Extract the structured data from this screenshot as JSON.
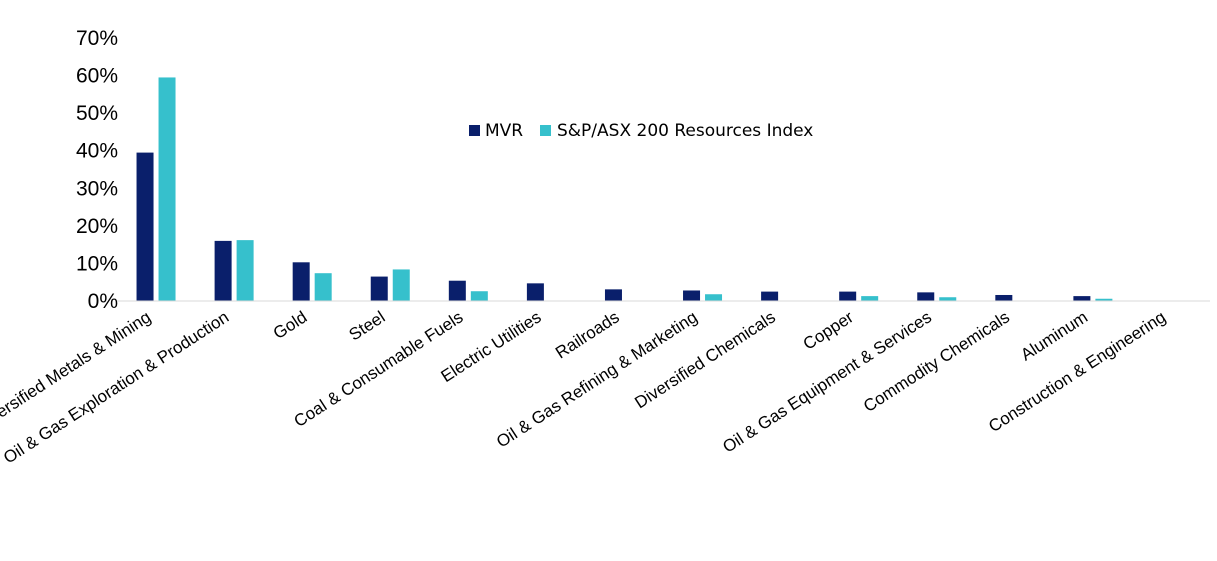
{
  "chart_data": {
    "type": "bar",
    "title": "",
    "xlabel": "",
    "ylabel": "",
    "ylim": [
      0,
      70
    ],
    "yticks": [
      "0%",
      "10%",
      "20%",
      "30%",
      "40%",
      "50%",
      "60%",
      "70%"
    ],
    "ytick_values": [
      0,
      10,
      20,
      30,
      40,
      50,
      60,
      70
    ],
    "grid": false,
    "legend_position": "top-center",
    "categories": [
      "Diversified Metals & Mining",
      "Oil & Gas Exploration & Production",
      "Gold",
      "Steel",
      "Coal & Consumable Fuels",
      "Electric Utilities",
      "Railroads",
      "Oil & Gas Refining & Marketing",
      "Diversified Chemicals",
      "Copper",
      "Oil & Gas Equipment & Services",
      "Commodity Chemicals",
      "Aluminum",
      "Construction & Engineering"
    ],
    "series": [
      {
        "name": "MVR",
        "color": "#0a1f6b",
        "values": [
          39.5,
          16.0,
          10.3,
          6.5,
          5.4,
          4.7,
          3.1,
          2.8,
          2.5,
          2.5,
          2.3,
          1.6,
          1.3,
          0.1
        ]
      },
      {
        "name": "S&P/ASX 200 Resources Index",
        "color": "#36c0cc",
        "values": [
          59.5,
          16.2,
          7.4,
          8.4,
          2.6,
          0.0,
          0.0,
          1.8,
          0.0,
          1.3,
          1.0,
          0.0,
          0.6,
          0.0
        ]
      }
    ]
  }
}
